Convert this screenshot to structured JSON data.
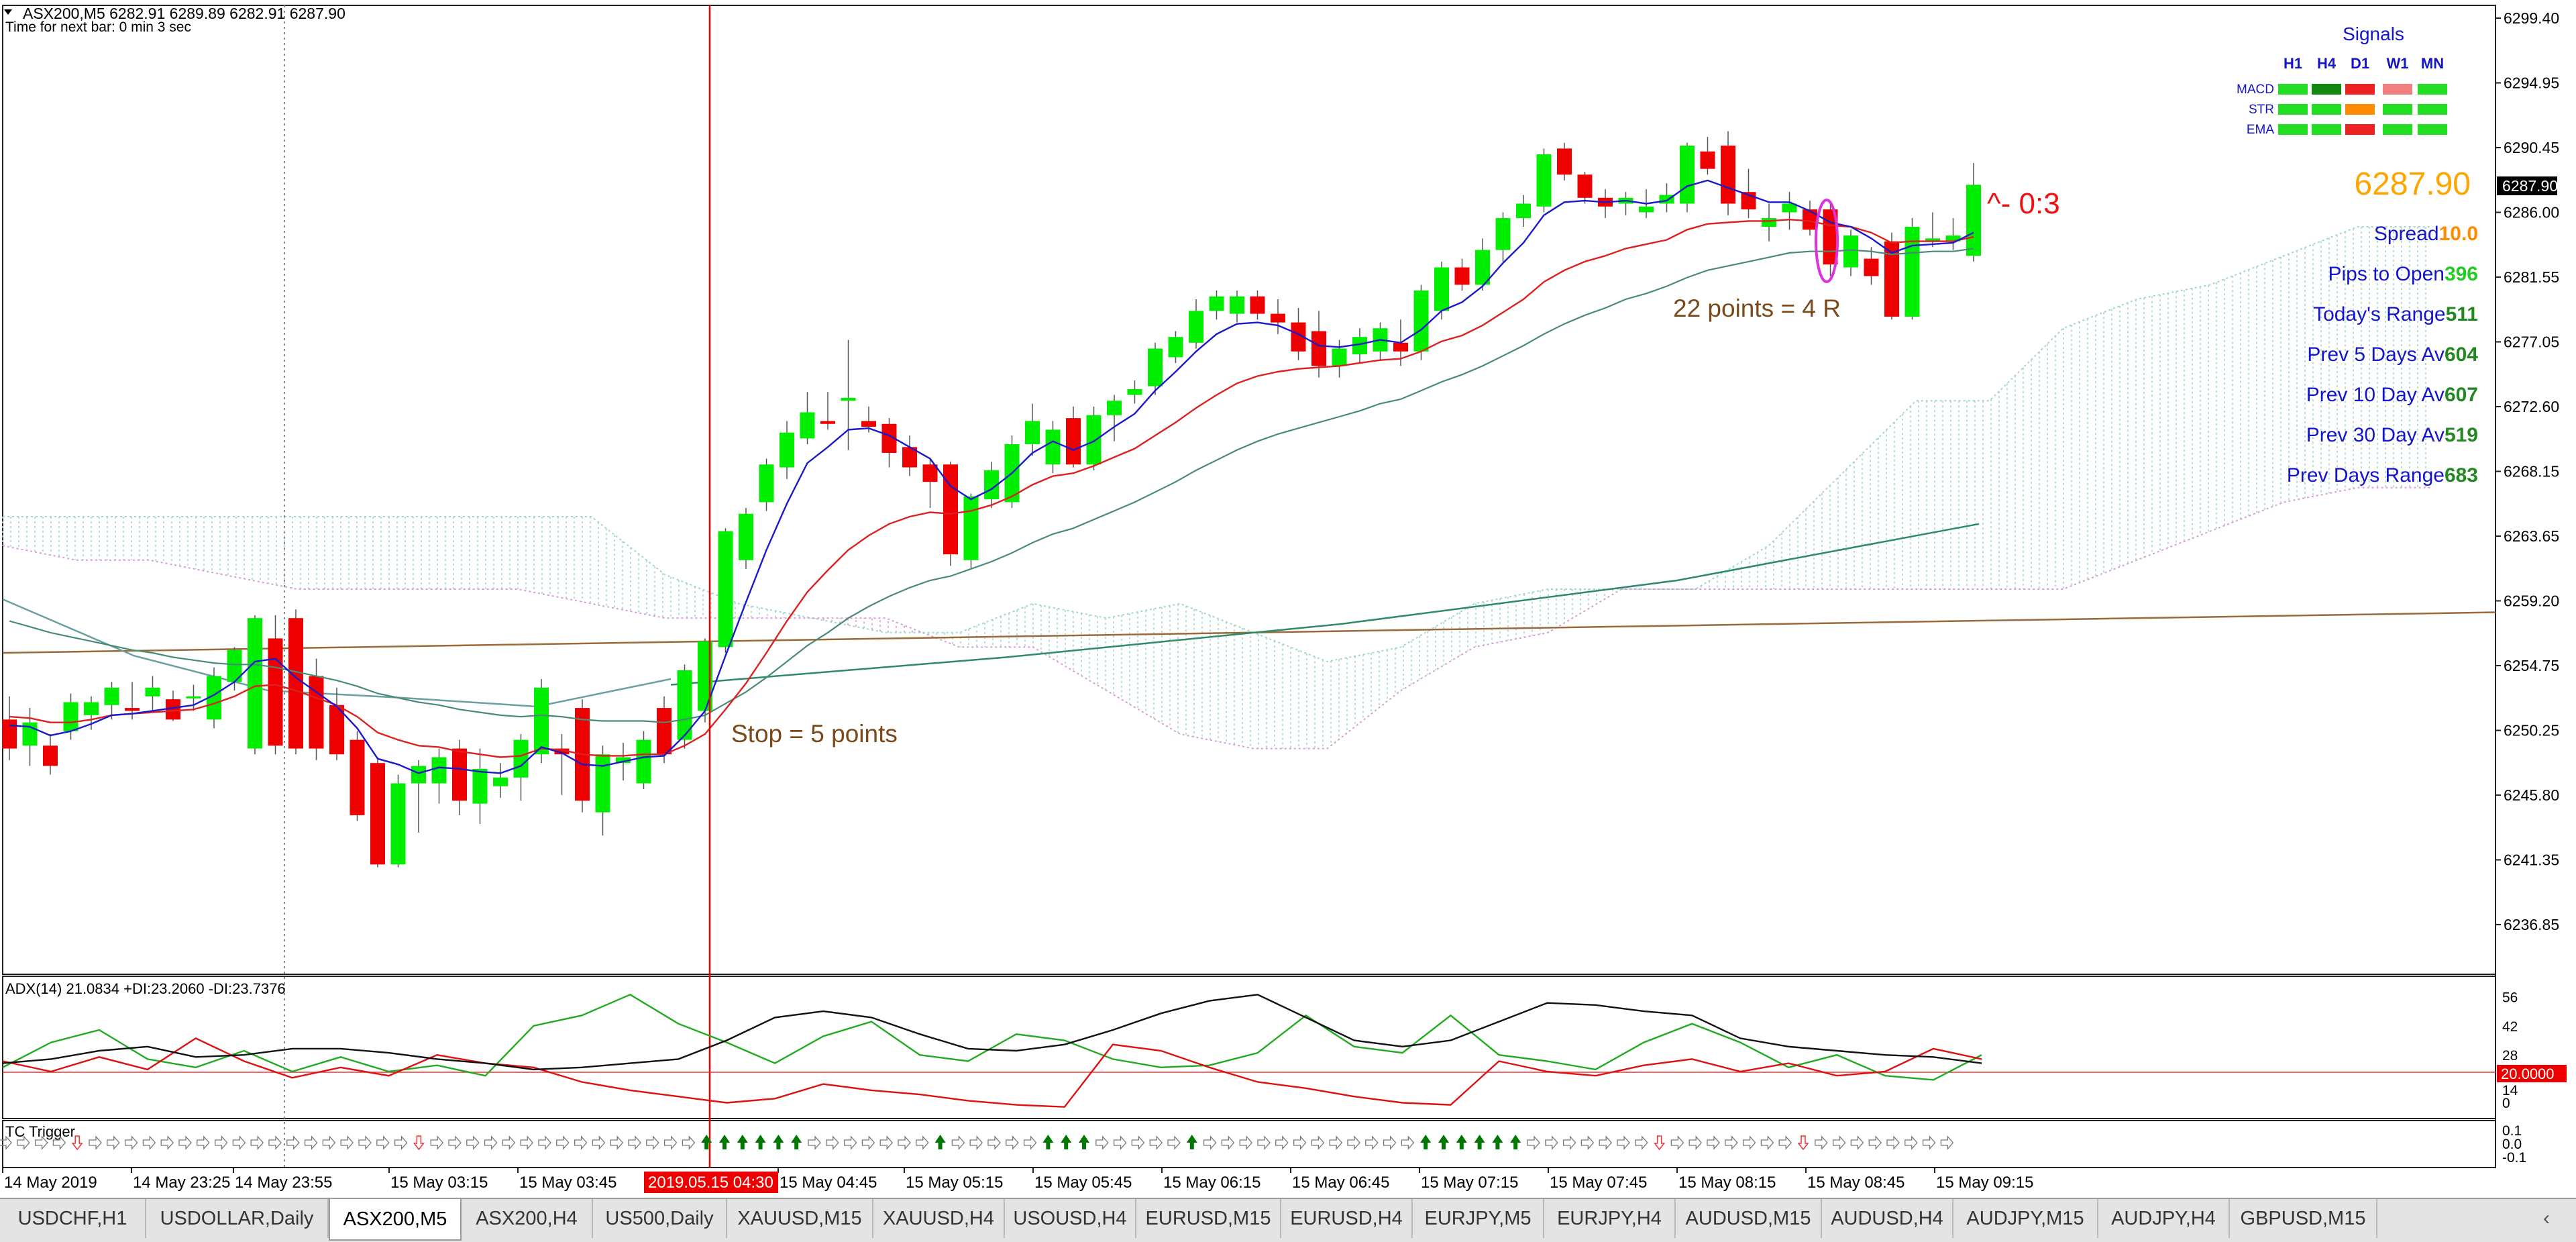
{
  "header": {
    "symbol_info": "ASX200,M5  6282.91 6289.89 6282.91 6287.90",
    "next_bar": "Time for next bar: 0 min 3 sec"
  },
  "price_axis": {
    "labels": [
      "6299.40",
      "6294.95",
      "6290.45",
      "6286.00",
      "6281.55",
      "6277.05",
      "6272.60",
      "6268.15",
      "6263.65",
      "6259.20",
      "6254.75",
      "6250.25",
      "6245.80",
      "6241.35",
      "6236.85"
    ],
    "current_price_tag": "6287.90"
  },
  "time_axis": {
    "labels": [
      "14 May 2019",
      "14 May 23:25",
      "14 May 23:55",
      "15 May 03:15",
      "15 May 03:45",
      "15 May 04:45",
      "15 May 05:15",
      "15 May 05:45",
      "15 May 06:15",
      "15 May 06:45",
      "15 May 07:15",
      "15 May 07:45",
      "15 May 08:15",
      "15 May 08:45",
      "15 May 09:15"
    ],
    "cursor_label": "2019.05.15 04:30"
  },
  "annotations": {
    "stop_text": "Stop = 5 points",
    "target_text": "22 points = 4 R",
    "trade_marker": "^- 0:3"
  },
  "signals": {
    "title": "Signals",
    "columns": [
      "H1",
      "H4",
      "D1",
      "W1",
      "MN"
    ],
    "rows": [
      {
        "name": "MACD",
        "cells": [
          "#22dd22",
          "#118811",
          "#ee2222",
          "#f08080",
          "#22dd22"
        ]
      },
      {
        "name": "STR",
        "cells": [
          "#22dd22",
          "#22dd22",
          "#ff8c00",
          "#22dd22",
          "#22dd22"
        ]
      },
      {
        "name": "EMA",
        "cells": [
          "#22dd22",
          "#22dd22",
          "#ee2222",
          "#22dd22",
          "#22dd22"
        ]
      }
    ]
  },
  "info_panel": {
    "price": "6287.90",
    "rows": [
      {
        "label": "Spread",
        "value": "10.0",
        "value_color": "#ff8c00"
      },
      {
        "label": "Pips to Open",
        "value": "396",
        "value_color": "#22cc22"
      },
      {
        "label": "Today's Range",
        "value": "511",
        "value_color": "#228822"
      },
      {
        "label": "Prev 5 Days Av",
        "value": "604",
        "value_color": "#228822"
      },
      {
        "label": "Prev 10 Day Av",
        "value": "607",
        "value_color": "#228822"
      },
      {
        "label": "Prev 30 Day Av",
        "value": "519",
        "value_color": "#228822"
      },
      {
        "label": "Prev Days Range",
        "value": "683",
        "value_color": "#228822"
      }
    ]
  },
  "adx": {
    "label": "ADX(14) 21.0834 +DI:23.2060 -DI:23.7376",
    "axis_labels": [
      "56",
      "42",
      "28",
      "14",
      "0"
    ],
    "level_tag": "20.0000"
  },
  "trigger": {
    "label": "TC Trigger",
    "axis_labels": [
      "0.1",
      "0.0",
      "-0.1"
    ]
  },
  "tabs": [
    {
      "label": "USDCHF,H1",
      "active": false
    },
    {
      "label": "USDOLLAR,Daily",
      "active": false
    },
    {
      "label": "ASX200,M5",
      "active": true
    },
    {
      "label": "ASX200,H4",
      "active": false
    },
    {
      "label": "US500,Daily",
      "active": false
    },
    {
      "label": "XAUUSD,M15",
      "active": false
    },
    {
      "label": "XAUUSD,H4",
      "active": false
    },
    {
      "label": "USOUSD,H4",
      "active": false
    },
    {
      "label": "EURUSD,M15",
      "active": false
    },
    {
      "label": "EURUSD,H4",
      "active": false
    },
    {
      "label": "EURJPY,M5",
      "active": false
    },
    {
      "label": "EURJPY,H4",
      "active": false
    },
    {
      "label": "AUDUSD,M15",
      "active": false
    },
    {
      "label": "AUDUSD,H4",
      "active": false
    },
    {
      "label": "AUDJPY,M15",
      "active": false
    },
    {
      "label": "AUDJPY,H4",
      "active": false
    },
    {
      "label": "GBPUSD,M15",
      "active": false
    }
  ],
  "tab_scroll_left": "‹",
  "colors": {
    "bull": "#00ee00",
    "bear": "#ee0000",
    "ema_fast": "#1a1acc",
    "ema_mid": "#dd2020",
    "ema_slow": "#4a8a78",
    "ma_long": "#2e8a6a",
    "ma_flat": "#9a6a3a",
    "cloud_up": "#9fd8c8",
    "cloud_down": "#d89ad8",
    "cursor": "#ee0000",
    "annotation": "#7a4a1a",
    "signals_text": "#1414cc"
  },
  "chart_data": {
    "type": "candlestick",
    "ylim": [
      6234.5,
      6301.0
    ],
    "candles": [
      [
        6251.0,
        6252.6,
        6248.2,
        6249.0
      ],
      [
        6249.2,
        6251.8,
        6247.8,
        6250.8
      ],
      [
        6249.2,
        6250.0,
        6247.2,
        6247.8
      ],
      [
        6250.2,
        6252.8,
        6249.6,
        6252.2
      ],
      [
        6251.3,
        6252.6,
        6250.3,
        6252.2
      ],
      [
        6252.0,
        6253.6,
        6251.0,
        6253.2
      ],
      [
        6251.8,
        6253.6,
        6251.0,
        6251.6
      ],
      [
        6252.6,
        6254.0,
        6251.6,
        6253.2
      ],
      [
        6252.4,
        6253.0,
        6250.9,
        6251.0
      ],
      [
        6252.6,
        6253.4,
        6251.6,
        6252.6
      ],
      [
        6251.0,
        6254.6,
        6250.4,
        6254.0
      ],
      [
        6253.6,
        6256.0,
        6253.0,
        6255.8
      ],
      [
        6249.0,
        6258.2,
        6248.6,
        6258.0
      ],
      [
        6256.6,
        6258.2,
        6248.6,
        6249.2
      ],
      [
        6258.0,
        6258.6,
        6248.6,
        6249.0
      ],
      [
        6254.0,
        6255.2,
        6248.2,
        6249.0
      ],
      [
        6252.0,
        6253.2,
        6248.2,
        6248.6
      ],
      [
        6249.6,
        6250.2,
        6244.0,
        6244.4
      ],
      [
        6248.0,
        6248.4,
        6240.8,
        6241.0
      ],
      [
        6241.0,
        6247.2,
        6240.8,
        6246.6
      ],
      [
        6246.6,
        6248.2,
        6243.2,
        6247.8
      ],
      [
        6246.6,
        6249.0,
        6245.2,
        6248.4
      ],
      [
        6249.0,
        6249.6,
        6244.4,
        6245.4
      ],
      [
        6245.2,
        6249.0,
        6243.8,
        6247.6
      ],
      [
        6246.4,
        6248.0,
        6245.6,
        6247.0
      ],
      [
        6247.0,
        6250.0,
        6245.4,
        6249.6
      ],
      [
        6248.6,
        6253.8,
        6248.0,
        6253.2
      ],
      [
        6249.0,
        6250.0,
        6245.8,
        6248.6
      ],
      [
        6251.8,
        6252.4,
        6244.6,
        6245.4
      ],
      [
        6244.6,
        6249.2,
        6243.0,
        6248.6
      ],
      [
        6248.0,
        6249.4,
        6246.8,
        6248.4
      ],
      [
        6246.6,
        6250.2,
        6246.2,
        6249.6
      ],
      [
        6251.8,
        6252.6,
        6248.0,
        6248.6
      ],
      [
        6249.6,
        6254.8,
        6249.0,
        6254.4
      ],
      [
        6251.6,
        6256.6,
        6250.8,
        6256.4
      ],
      [
        6256.0,
        6264.2,
        6255.6,
        6264.0
      ],
      [
        6262.0,
        6265.6,
        6261.4,
        6265.2
      ],
      [
        6266.0,
        6269.0,
        6265.4,
        6268.6
      ],
      [
        6268.4,
        6271.6,
        6267.6,
        6270.8
      ],
      [
        6270.4,
        6273.6,
        6270.0,
        6272.2
      ],
      [
        6271.6,
        6273.6,
        6271.0,
        6271.4
      ],
      [
        6273.0,
        6277.2,
        6269.6,
        6273.2
      ],
      [
        6271.6,
        6272.6,
        6270.8,
        6271.2
      ],
      [
        6271.4,
        6271.8,
        6268.4,
        6269.4
      ],
      [
        6269.8,
        6270.6,
        6267.8,
        6268.4
      ],
      [
        6268.6,
        6269.0,
        6265.6,
        6267.4
      ],
      [
        6268.6,
        6268.8,
        6261.6,
        6262.4
      ],
      [
        6262.0,
        6266.6,
        6261.4,
        6266.4
      ],
      [
        6266.2,
        6268.8,
        6265.6,
        6268.2
      ],
      [
        6266.0,
        6270.6,
        6265.6,
        6270.0
      ],
      [
        6270.0,
        6272.8,
        6269.2,
        6271.6
      ],
      [
        6268.6,
        6271.6,
        6268.0,
        6271.0
      ],
      [
        6271.8,
        6272.6,
        6268.4,
        6268.6
      ],
      [
        6268.6,
        6272.6,
        6268.2,
        6272.0
      ],
      [
        6272.0,
        6273.4,
        6270.2,
        6273.0
      ],
      [
        6273.4,
        6274.4,
        6272.8,
        6273.8
      ],
      [
        6274.0,
        6277.0,
        6273.4,
        6276.6
      ],
      [
        6276.0,
        6277.8,
        6275.6,
        6277.4
      ],
      [
        6277.0,
        6280.0,
        6276.6,
        6279.2
      ],
      [
        6279.2,
        6280.6,
        6278.6,
        6280.2
      ],
      [
        6279.0,
        6280.6,
        6278.4,
        6280.2
      ],
      [
        6280.2,
        6280.6,
        6278.6,
        6279.0
      ],
      [
        6279.0,
        6280.0,
        6277.6,
        6278.4
      ],
      [
        6278.4,
        6279.4,
        6275.8,
        6276.4
      ],
      [
        6277.8,
        6279.2,
        6274.6,
        6275.4
      ],
      [
        6275.4,
        6277.2,
        6274.6,
        6276.6
      ],
      [
        6276.2,
        6278.0,
        6275.6,
        6277.4
      ],
      [
        6276.4,
        6278.4,
        6275.8,
        6278.0
      ],
      [
        6277.0,
        6278.6,
        6275.4,
        6276.4
      ],
      [
        6276.4,
        6281.0,
        6275.8,
        6280.6
      ],
      [
        6279.2,
        6282.6,
        6278.6,
        6282.2
      ],
      [
        6282.2,
        6282.8,
        6280.6,
        6281.0
      ],
      [
        6281.0,
        6284.2,
        6280.6,
        6283.4
      ],
      [
        6283.4,
        6286.0,
        6282.6,
        6285.6
      ],
      [
        6285.6,
        6287.2,
        6285.0,
        6286.6
      ],
      [
        6286.4,
        6290.4,
        6286.0,
        6290.0
      ],
      [
        6290.4,
        6290.8,
        6288.2,
        6288.6
      ],
      [
        6288.6,
        6288.8,
        6286.6,
        6287.0
      ],
      [
        6287.0,
        6287.6,
        6285.6,
        6286.4
      ],
      [
        6286.6,
        6287.4,
        6285.8,
        6287.0
      ],
      [
        6286.0,
        6287.6,
        6285.6,
        6286.4
      ],
      [
        6286.6,
        6288.0,
        6286.0,
        6287.2
      ],
      [
        6286.6,
        6290.8,
        6286.0,
        6290.6
      ],
      [
        6290.2,
        6291.2,
        6288.6,
        6289.0
      ],
      [
        6290.6,
        6291.6,
        6285.8,
        6286.6
      ],
      [
        6287.4,
        6289.0,
        6285.6,
        6286.2
      ],
      [
        6285.0,
        6286.6,
        6284.0,
        6285.6
      ],
      [
        6286.0,
        6287.4,
        6284.8,
        6286.6
      ],
      [
        6286.2,
        6286.8,
        6284.4,
        6284.8
      ],
      [
        6286.2,
        6286.6,
        6281.6,
        6282.4
      ],
      [
        6282.2,
        6284.8,
        6281.6,
        6284.4
      ],
      [
        6282.8,
        6283.6,
        6281.0,
        6281.6
      ],
      [
        6284.0,
        6284.6,
        6278.6,
        6278.8
      ],
      [
        6278.8,
        6285.6,
        6278.6,
        6285.0
      ],
      [
        6284.0,
        6286.0,
        6283.6,
        6284.2
      ],
      [
        6284.0,
        6285.6,
        6283.4,
        6284.4
      ],
      [
        6283.0,
        6289.4,
        6282.6,
        6287.9
      ]
    ],
    "ema_fast": [
      6250.6,
      6250.5,
      6249.9,
      6250.2,
      6250.7,
      6251.3,
      6251.4,
      6251.6,
      6251.8,
      6252.0,
      6252.7,
      6253.6,
      6255.0,
      6255.2,
      6253.9,
      6252.9,
      6251.9,
      6250.4,
      6248.3,
      6247.9,
      6247.3,
      6247.7,
      6247.6,
      6247.4,
      6247.3,
      6247.8,
      6249.1,
      6248.7,
      6247.9,
      6247.8,
      6248.1,
      6248.4,
      6248.5,
      6249.9,
      6251.6,
      6255.4,
      6259.1,
      6262.7,
      6265.9,
      6268.7,
      6269.8,
      6271.0,
      6271.1,
      6270.6,
      6269.8,
      6269.0,
      6267.1,
      6266.2,
      6266.9,
      6268.0,
      6269.4,
      6270.2,
      6269.6,
      6270.2,
      6271.2,
      6272.1,
      6273.7,
      6275.0,
      6276.4,
      6277.6,
      6278.3,
      6278.4,
      6278.2,
      6277.6,
      6276.8,
      6276.7,
      6276.9,
      6277.2,
      6277.0,
      6277.9,
      6279.2,
      6279.8,
      6280.9,
      6282.5,
      6283.9,
      6285.8,
      6286.7,
      6286.8,
      6286.7,
      6286.8,
      6286.6,
      6286.8,
      6287.8,
      6288.2,
      6287.7,
      6287.2,
      6286.7,
      6286.7,
      6286.1,
      6285.3,
      6285.0,
      6284.2,
      6283.2,
      6283.7,
      6283.8,
      6283.9,
      6284.6
    ],
    "ema_mid": [
      6251.2,
      6251.1,
      6250.8,
      6250.8,
      6251.0,
      6251.3,
      6251.4,
      6251.5,
      6251.6,
      6251.7,
      6252.1,
      6252.6,
      6253.3,
      6253.4,
      6253.0,
      6252.5,
      6252.0,
      6251.2,
      6250.1,
      6249.6,
      6249.2,
      6249.1,
      6248.8,
      6248.6,
      6248.4,
      6248.5,
      6249.0,
      6248.9,
      6248.6,
      6248.5,
      6248.5,
      6248.6,
      6248.6,
      6249.2,
      6250.0,
      6251.7,
      6253.5,
      6255.6,
      6257.8,
      6259.8,
      6261.3,
      6262.7,
      6263.7,
      6264.5,
      6265.0,
      6265.3,
      6265.2,
      6265.4,
      6265.8,
      6266.4,
      6267.2,
      6267.8,
      6268.0,
      6268.5,
      6269.1,
      6269.7,
      6270.6,
      6271.5,
      6272.5,
      6273.4,
      6274.2,
      6274.7,
      6275.0,
      6275.2,
      6275.3,
      6275.4,
      6275.6,
      6275.8,
      6275.9,
      6276.4,
      6277.1,
      6277.5,
      6278.2,
      6279.1,
      6280.0,
      6281.2,
      6282.0,
      6282.6,
      6283.0,
      6283.5,
      6283.8,
      6284.1,
      6284.8,
      6285.2,
      6285.3,
      6285.4,
      6285.4,
      6285.5,
      6285.4,
      6285.1,
      6285.0,
      6284.6,
      6283.9,
      6284.0,
      6284.0,
      6284.0,
      6284.3
    ],
    "ema_slow": [
      6257.8,
      6257.4,
      6257.0,
      6256.7,
      6256.4,
      6256.1,
      6255.8,
      6255.6,
      6255.3,
      6255.1,
      6254.9,
      6254.8,
      6254.8,
      6254.6,
      6254.3,
      6254.0,
      6253.7,
      6253.3,
      6252.8,
      6252.5,
      6252.2,
      6252.0,
      6251.7,
      6251.5,
      6251.3,
      6251.2,
      6251.3,
      6251.2,
      6251.0,
      6250.9,
      6250.9,
      6250.9,
      6250.8,
      6251.0,
      6251.3,
      6252.1,
      6252.9,
      6253.9,
      6255.0,
      6256.1,
      6257.0,
      6258.0,
      6258.8,
      6259.5,
      6260.1,
      6260.6,
      6260.9,
      6261.4,
      6261.9,
      6262.5,
      6263.2,
      6263.8,
      6264.2,
      6264.8,
      6265.4,
      6266.0,
      6266.7,
      6267.4,
      6268.2,
      6268.9,
      6269.6,
      6270.2,
      6270.7,
      6271.1,
      6271.5,
      6271.9,
      6272.3,
      6272.8,
      6273.1,
      6273.7,
      6274.3,
      6274.8,
      6275.4,
      6276.1,
      6276.8,
      6277.6,
      6278.3,
      6278.9,
      6279.4,
      6280.0,
      6280.4,
      6280.9,
      6281.5,
      6282.0,
      6282.3,
      6282.6,
      6282.9,
      6283.2,
      6283.3,
      6283.3,
      6283.4,
      6283.3,
      6283.1,
      6283.2,
      6283.3,
      6283.3,
      6283.5
    ],
    "ma_long": [
      6253.8,
      6264.5
    ],
    "ma_flat": [
      6255.6,
      6258.4
    ],
    "adx_lines": {
      "adx": [
        24,
        26,
        30,
        32,
        27,
        28,
        31,
        31,
        29,
        26,
        24,
        21,
        22,
        24,
        26,
        35,
        46,
        49,
        46,
        38,
        31,
        30,
        33,
        40,
        48,
        54,
        57,
        46,
        35,
        32,
        35,
        44,
        53,
        52,
        49,
        47,
        36,
        32,
        30,
        28,
        27,
        24
      ],
      "plus_di": [
        22,
        34,
        40,
        26,
        22,
        30,
        20,
        27,
        20,
        23,
        18,
        42,
        47,
        57,
        43,
        34,
        24,
        37,
        44,
        28,
        25,
        38,
        35,
        26,
        22,
        23,
        29,
        47,
        32,
        29,
        47,
        28,
        25,
        21,
        34,
        43,
        34,
        22,
        28,
        18,
        16,
        28
      ],
      "minus_di": [
        25,
        20,
        27,
        21,
        36,
        25,
        17,
        22,
        18,
        28,
        24,
        22,
        15,
        11,
        8,
        5,
        7,
        14,
        11,
        9,
        6,
        4,
        3,
        33,
        30,
        22,
        15,
        12,
        8,
        5,
        4,
        25,
        20,
        18,
        23,
        26,
        20,
        24,
        18,
        20,
        31,
        26
      ]
    },
    "ichimoku_cloud": {
      "span_a": [
        6265,
        6265,
        6265,
        6265,
        6265,
        6265,
        6265,
        6265,
        6265,
        6261,
        6259,
        6258,
        6257,
        6257,
        6259,
        6258,
        6259,
        6257,
        6255,
        6256,
        6259,
        6260,
        6260,
        6260,
        6263,
        6268,
        6273,
        6273,
        6278,
        6280,
        6281,
        6283,
        6285,
        6285
      ],
      "span_b": [
        6263,
        6262,
        6262,
        6261,
        6260,
        6260,
        6260,
        6260,
        6259,
        6258,
        6258,
        6258,
        6258,
        6256,
        6256,
        6253,
        6250,
        6249,
        6249,
        6253,
        6256,
        6257,
        6260,
        6260,
        6260,
        6260,
        6260,
        6260,
        6260,
        6262,
        6264,
        6266,
        6267,
        6267
      ]
    },
    "trigger_arrows": "ddddwddddddddddddddddddwddddddddddddddduuuuuuddddddduddddduuudddddudddddddddddduuuuuudddddddwdddddddwdddddddd"
  }
}
